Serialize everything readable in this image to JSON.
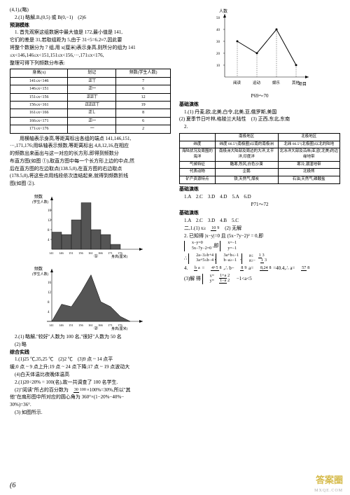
{
  "top": {
    "l1": "(4,1),(略)",
    "l2": "2.(1) 略解,B,(0,5) 或 B(0,−1)　(2)6"
  },
  "sect": {
    "pretest": "预测模练",
    "basic": "基础演练",
    "comp": "综合实践"
  },
  "para1": {
    "l1": "1. 首先观察这组数据中最大值是 172,最小值是 141,",
    "l2": "它们的差是 31,若取组距为 5,由于 31÷5=6.2≈7,因此要",
    "l3": "将整个数据分为 7 组,用 x(厘米)表示身高,则所分的组为 141",
    "l4": "≤x<146,146≤x<151,151≤x<156,···,171≤x<176,",
    "l5": "整理可得下列频数分布表:"
  },
  "table1": {
    "headers": [
      "身高(x)",
      "划记",
      "频数(学生人数)"
    ],
    "rows": [
      [
        "141≤x<146",
        "正丅",
        "7"
      ],
      [
        "146≤x<151",
        "正一",
        "6"
      ],
      [
        "151≤x<156",
        "正正丅",
        "12"
      ],
      [
        "156≤x<161",
        "正正正丅",
        "19"
      ],
      [
        "161≤x<166",
        "正𠄌",
        "8"
      ],
      [
        "166≤x<171",
        "正一",
        "6"
      ],
      [
        "171≤x<176",
        "一",
        "2"
      ]
    ]
  },
  "para2": {
    "l1": "　　用横轴表示身高,等距离标出各组的端点 141,146,151,",
    "l2": "···,171,176;用纵轴表示频数,等距离标出 4,8,12,16,在相应",
    "l3": "的频数出来画出与这一对应的长方形,即得到频数分",
    "l4": "布直方图(如图 ①),取直方图中每一个长方形上边的中点,然",
    "l5": "后在直方图的左边取点(138.5,0),在直方图的右边取点",
    "l6": "(178.5,0),将这些点用线段依次连结起来,就得到频数折线",
    "l7": "图(如图 ②)."
  },
  "chart1": {
    "ylabel": "频数\n(学生人数)",
    "xlabel": "身高(厘米)",
    "yticks": [
      4,
      8,
      12,
      16
    ],
    "xticks": [
      "141",
      "146",
      "151",
      "156",
      "161",
      "166",
      "171",
      "176"
    ],
    "bars": [
      7,
      6,
      12,
      19,
      8,
      6,
      2
    ],
    "barcolor": "#555",
    "gridcolor": "#aaa",
    "caption": "①"
  },
  "chart2": {
    "ylabel": "频数\n(学生人数)",
    "xlabel": "身高(厘米)",
    "yticks": [
      4,
      8,
      12,
      16
    ],
    "xticks": [
      "141",
      "146",
      "151",
      "156",
      "161",
      "166",
      "171",
      "176"
    ],
    "points": [
      0,
      7,
      6,
      12,
      19,
      8,
      6,
      2,
      0
    ],
    "fillcolor": "#555",
    "caption": "②"
  },
  "q2": {
    "l1": "2.(1) 略解,\"较好\"人数为 100 名,\"很好\"人数为 50 名",
    "l2": "(2) 略"
  },
  "comp1": {
    "l1": "1.(1)25 ℃,35,25 ℃　(2)2 ℃　(3)9 点 ~ 14 点平",
    "l2": "缓;0 点 ~ 9 点上升;19 点 ~ 24 点下降;17 点 ~ 19 点波动大",
    "l3": "(4)白天体温比夜晚体温高",
    "l4": "2.(1)20÷20% = 100(名),故一共调查了 100 名学生."
  },
  "right": {
    "l1": "(2)\"阅读\"所占的百分数为",
    "frac1": {
      "n": "30",
      "d": "100"
    },
    "l1b": "×100%=30%,所以\"其",
    "l2": "他\"在扇形图中所对应的圆心角为 360°×(1−20%−40%−",
    "l3": "30%)=36°.",
    "l4": "(3) 如图所示."
  },
  "chart3": {
    "ylabel": "人数",
    "xlabel": "项目",
    "yticks": [
      10,
      20,
      30,
      40,
      50
    ],
    "xcats": [
      "阅读",
      "运动",
      "娱乐",
      "其他"
    ],
    "points": [
      30,
      20,
      40,
      10
    ],
    "linecolor": "#000"
  },
  "pg1": "P69～70",
  "geo": {
    "l1": "1.(1) 丹麦,欧,北美,白令,北美,亚,俄罗斯,美国",
    "l2": "(2) 夏季节日叶林,格陵兰大陆性　(3) 正西,东北,东南",
    "l3": "2."
  },
  "table2": {
    "h": [
      "",
      "南极地区",
      "北极地区"
    ],
    "r1": [
      "纬度",
      "纬度 66.5°(南极圈)以南的南极洲",
      "北纬 66.5°(北极圈)以北的陆地"
    ],
    "r2": [
      "海陆状况及周围的海洋",
      "南极洲大陆部及周边的大洋,太平洋,印度洋",
      "北冰洋大部及沿岸(亚,欧,北美)的边缘地带"
    ],
    "r3": [
      "气候特征",
      "酷寒,烈风,白色沙漠",
      "寒冷,潮湿地带"
    ],
    "r4": [
      "代表动物",
      "企鹅",
      "北极熊"
    ],
    "r5": [
      "矿产资源特点",
      "铁,天然气,煤炭",
      "石油,天然气,磷酸盐"
    ]
  },
  "pg2": "P71～72",
  "basic2": {
    "l1": "1.A　2.C　3.D　4.D　5.A　6.D"
  },
  "basic3": {
    "l1": "1.A　2.C　3.D　4.B　5.C",
    "l2": "二,1.(1) x≥",
    "frac2": {
      "n": "10",
      "d": "9"
    },
    "l2b": "　(2) 无解",
    "l3": "2. 已知得 |x−y|=0 且 (5x−7y−2)² = 0,即",
    "sys1": [
      [
        "x−y=0",
        "x=−1"
      ],
      [
        "5x−7y−2=0",
        "y=−1"
      ]
    ],
    "l4": "∴",
    "sys2": [
      [
        "2a−3≥b+4",
        "3a+b≤−1",
        "a≤"
      ],
      [
        "3a+5≤b−4",
        "b−a≥−1",
        "a≥−"
      ]
    ],
    "frac3": {
      "n": "1",
      "d": "3"
    },
    "l5": "4.",
    "frac4": {
      "n": "b",
      "d": "a"
    },
    "l5b": "=",
    "frac51": {
      "n": "4+5",
      "d": "8"
    },
    "l5c": ",∴ b−",
    "frac52": {
      "n": "8",
      "d": "9"
    },
    "l5d": "a=",
    "frac53": {
      "n": "8,24",
      "d": "8"
    },
    "l5e": "=40.4,∴ a=",
    "frac54": {
      "n": "57",
      "d": "8"
    },
    "l6": "(3)解 得",
    "sys3": [
      "x=",
      "y="
    ],
    "frac6": {
      "n": "1+a",
      "d": "2"
    },
    "frac7": {
      "n": "1−a",
      "d": "2"
    },
    "l6b": "−1<a<5"
  },
  "page_number": "6"
}
